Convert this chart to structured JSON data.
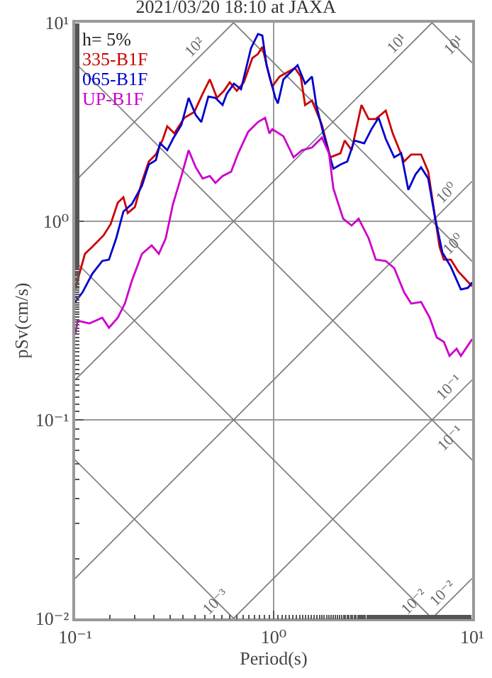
{
  "chart_data": {
    "type": "line",
    "title": "2021/03/20 18:10 at JAXA",
    "xlabel": "Period(s)",
    "ylabel": "pSv(cm/s)",
    "log": "xy",
    "grid": true,
    "legend": "top left",
    "marker": "none",
    "line_style": "solid",
    "xlim": [
      0.1,
      10
    ],
    "ylim": [
      0.01,
      10
    ],
    "xticks": [
      {
        "value": 0.1,
        "label": "10⁻¹"
      },
      {
        "value": 1,
        "label": "10⁰"
      },
      {
        "value": 10,
        "label": "10¹"
      }
    ],
    "yticks": [
      {
        "value": 0.01,
        "label": "10⁻²"
      },
      {
        "value": 0.1,
        "label": "10⁻¹"
      },
      {
        "value": 1,
        "label": "10⁰"
      },
      {
        "value": 10,
        "label": "10¹"
      }
    ],
    "annotations": [
      "h= 5%",
      {
        "text": "10²",
        "x": 0.439,
        "y": 6.99
      },
      {
        "text": "10¹",
        "x": 4.54,
        "y": 7.2
      },
      {
        "text": "10¹",
        "x": 8.8,
        "y": 7.1
      },
      {
        "text": "10⁰",
        "x": 8.1,
        "y": 1.29
      },
      {
        "text": "10⁰",
        "x": 8.8,
        "y": 0.71
      },
      {
        "text": "10⁻¹",
        "x": 8.4,
        "y": 0.134
      },
      {
        "text": "10⁻¹",
        "x": 8.5,
        "y": 0.074
      },
      {
        "text": "10⁻³",
        "x": 0.56,
        "y": 0.0112
      },
      {
        "text": "10⁻²",
        "x": 5.6,
        "y": 0.0112
      },
      {
        "text": "10⁻²",
        "x": 7.8,
        "y": 0.0124
      }
    ],
    "series": [
      {
        "type": "line",
        "color": "#808080",
        "x": [
          0.1,
          0.628
        ],
        "values": [
          1.59,
          10
        ]
      },
      {
        "type": "line",
        "color": "#808080",
        "x": [
          0.1,
          6.28
        ],
        "values": [
          0.159,
          10
        ]
      },
      {
        "type": "line",
        "color": "#808080",
        "x": [
          0.1,
          10
        ],
        "values": [
          0.0159,
          1.59
        ]
      },
      {
        "type": "line",
        "color": "#808080",
        "x": [
          0.628,
          10
        ],
        "values": [
          0.01,
          0.159
        ]
      },
      {
        "type": "line",
        "color": "#808080",
        "x": [
          6.28,
          10
        ],
        "values": [
          0.01,
          0.0159
        ]
      },
      {
        "type": "line",
        "color": "#808080",
        "x": [
          6.28,
          10
        ],
        "values": [
          10,
          6.28
        ]
      },
      {
        "type": "line",
        "color": "#808080",
        "x": [
          0.628,
          10
        ],
        "values": [
          10,
          0.628
        ]
      },
      {
        "type": "line",
        "color": "#808080",
        "x": [
          0.1,
          10
        ],
        "values": [
          6.28,
          0.0628
        ]
      },
      {
        "type": "line",
        "color": "#808080",
        "x": [
          0.1,
          6.28
        ],
        "values": [
          0.628,
          0.01
        ]
      },
      {
        "type": "line",
        "color": "#808080",
        "x": [
          0.1,
          0.628
        ],
        "values": [
          0.0628,
          0.01
        ]
      },
      {
        "name": "335-B1F",
        "color": "#cc0000",
        "x": [
          0.1,
          0.112,
          0.122,
          0.139,
          0.151,
          0.164,
          0.175,
          0.184,
          0.2,
          0.217,
          0.235,
          0.255,
          0.277,
          0.291,
          0.316,
          0.355,
          0.398,
          0.439,
          0.477,
          0.518,
          0.562,
          0.601,
          0.652,
          0.708,
          0.781,
          0.834,
          0.877,
          0.952,
          0.984,
          1.07,
          1.28,
          1.37,
          1.44,
          1.56,
          1.75,
          1.93,
          2.17,
          2.28,
          2.47,
          2.77,
          3.01,
          3.27,
          3.67,
          3.98,
          4.54,
          4.93,
          5.53,
          6.01,
          6.52,
          6.85,
          7.2,
          7.81,
          8.48,
          10
        ],
        "values": [
          0.456,
          0.685,
          0.744,
          0.849,
          0.968,
          1.24,
          1.32,
          1.1,
          1.18,
          1.58,
          2,
          2.17,
          2.6,
          3.01,
          2.77,
          3.32,
          3.55,
          4.39,
          5.18,
          4.18,
          4.54,
          5.01,
          4.54,
          5.01,
          6.63,
          6.96,
          7.56,
          5.35,
          4.77,
          5.35,
          5.91,
          5.35,
          3.85,
          4.05,
          3.06,
          2.1,
          2.2,
          2.55,
          2.28,
          3.85,
          3.27,
          3.27,
          3.61,
          2.77,
          2,
          2.17,
          2.17,
          1.78,
          1.03,
          0.744,
          0.641,
          0.641,
          0.562,
          0.47
        ]
      },
      {
        "name": "065-B1F",
        "color": "#0000cc",
        "x": [
          0.1,
          0.109,
          0.122,
          0.137,
          0.148,
          0.161,
          0.175,
          0.193,
          0.217,
          0.235,
          0.255,
          0.268,
          0.291,
          0.311,
          0.343,
          0.373,
          0.405,
          0.432,
          0.469,
          0.509,
          0.553,
          0.581,
          0.631,
          0.685,
          0.769,
          0.834,
          0.877,
          0.921,
          1.02,
          1.05,
          1.12,
          1.32,
          1.44,
          1.56,
          1.64,
          1.78,
          2,
          2.17,
          2.35,
          2.55,
          2.86,
          3.11,
          3.38,
          3.67,
          4.05,
          4.39,
          4.77,
          5.18,
          5.53,
          6.01,
          6.52,
          7.08,
          7.81,
          8.77,
          9.52,
          10
        ],
        "values": [
          0.392,
          0.439,
          0.544,
          0.631,
          0.641,
          0.821,
          1.12,
          1.22,
          1.51,
          1.93,
          2.03,
          2.47,
          2.28,
          2.6,
          3.06,
          4.18,
          3.43,
          3.16,
          4.25,
          4.18,
          3.85,
          4.39,
          4.93,
          4.62,
          7.44,
          8.77,
          8.62,
          6.11,
          4.18,
          3.92,
          5.18,
          6.11,
          4.93,
          5.35,
          3.85,
          2.77,
          1.84,
          1.93,
          2,
          2.55,
          2.47,
          2.91,
          3.32,
          2.6,
          2.1,
          2.2,
          1.44,
          1.72,
          1.87,
          1.64,
          1.03,
          0.697,
          0.59,
          0.454,
          0.462,
          0.493
        ]
      },
      {
        "name": "UP-B1F",
        "color": "#cc00cc",
        "x": [
          0.1,
          0.103,
          0.118,
          0.137,
          0.148,
          0.164,
          0.178,
          0.193,
          0.217,
          0.243,
          0.264,
          0.286,
          0.311,
          0.343,
          0.373,
          0.405,
          0.439,
          0.477,
          0.509,
          0.553,
          0.611,
          0.663,
          0.744,
          0.834,
          0.906,
          0.952,
          0.984,
          1.12,
          1.26,
          1.39,
          1.56,
          1.75,
          1.9,
          2,
          2.24,
          2.47,
          2.68,
          3.01,
          3.27,
          3.67,
          4.05,
          4.54,
          4.93,
          5.53,
          6.11,
          6.63,
          7.2,
          7.69,
          8.35,
          8.77,
          10
        ],
        "values": [
          0.268,
          0.316,
          0.306,
          0.327,
          0.291,
          0.327,
          0.385,
          0.501,
          0.685,
          0.756,
          0.685,
          0.821,
          1.22,
          1.69,
          2.28,
          1.87,
          1.64,
          1.69,
          1.56,
          1.69,
          1.78,
          2.2,
          2.82,
          3.16,
          3.32,
          2.77,
          2.91,
          2.68,
          2.1,
          2.28,
          2.35,
          2.64,
          2.2,
          1.46,
          1.03,
          0.952,
          1.03,
          0.821,
          0.641,
          0.631,
          0.581,
          0.439,
          0.385,
          0.392,
          0.327,
          0.26,
          0.247,
          0.21,
          0.228,
          0.21,
          0.255
        ]
      }
    ]
  }
}
